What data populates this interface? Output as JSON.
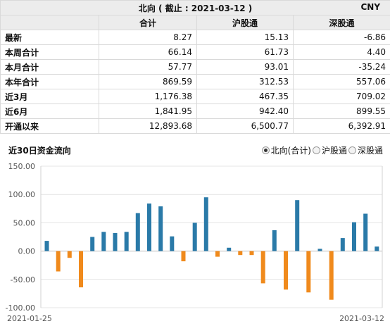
{
  "header": {
    "title": "北向 ( 截止 : 2021-03-12 )",
    "currency": "CNY"
  },
  "table": {
    "columns": [
      "合计",
      "沪股通",
      "深股通"
    ],
    "rows": [
      {
        "label": "最新",
        "values": [
          "8.27",
          "15.13",
          "-6.86"
        ]
      },
      {
        "label": "本周合计",
        "values": [
          "66.14",
          "61.73",
          "4.40"
        ]
      },
      {
        "label": "本月合计",
        "values": [
          "57.77",
          "93.01",
          "-35.24"
        ]
      },
      {
        "label": "本年合计",
        "values": [
          "869.59",
          "312.53",
          "557.06"
        ]
      },
      {
        "label": "近3月",
        "values": [
          "1,176.38",
          "467.35",
          "709.02"
        ]
      },
      {
        "label": "近6月",
        "values": [
          "1,841.95",
          "942.40",
          "899.55"
        ]
      },
      {
        "label": "开通以来",
        "values": [
          "12,893.68",
          "6,500.77",
          "6,392.91"
        ]
      }
    ]
  },
  "chart_section": {
    "title": "近30日资金流向",
    "legend": [
      {
        "label": "北向(合计)",
        "selected": true
      },
      {
        "label": "沪股通",
        "selected": false
      },
      {
        "label": "深股通",
        "selected": false
      }
    ]
  },
  "chart_data": {
    "type": "bar",
    "x_start_label": "2021-01-25",
    "x_end_label": "2021-03-12",
    "ylim": [
      -100,
      150
    ],
    "yticks": [
      "150.00",
      "100.00",
      "50.00",
      "0.00",
      "-50.00",
      "-100.00"
    ],
    "positive_color": "#2a7aa8",
    "negative_color": "#f08a1c",
    "values": [
      18,
      -36,
      -12,
      -64,
      25,
      34,
      32,
      34,
      67,
      84,
      79,
      26,
      -18,
      50,
      95,
      -10,
      6,
      -7,
      -7,
      -57,
      37,
      -68,
      90,
      -73,
      4,
      -86,
      23,
      51,
      66,
      8
    ]
  }
}
